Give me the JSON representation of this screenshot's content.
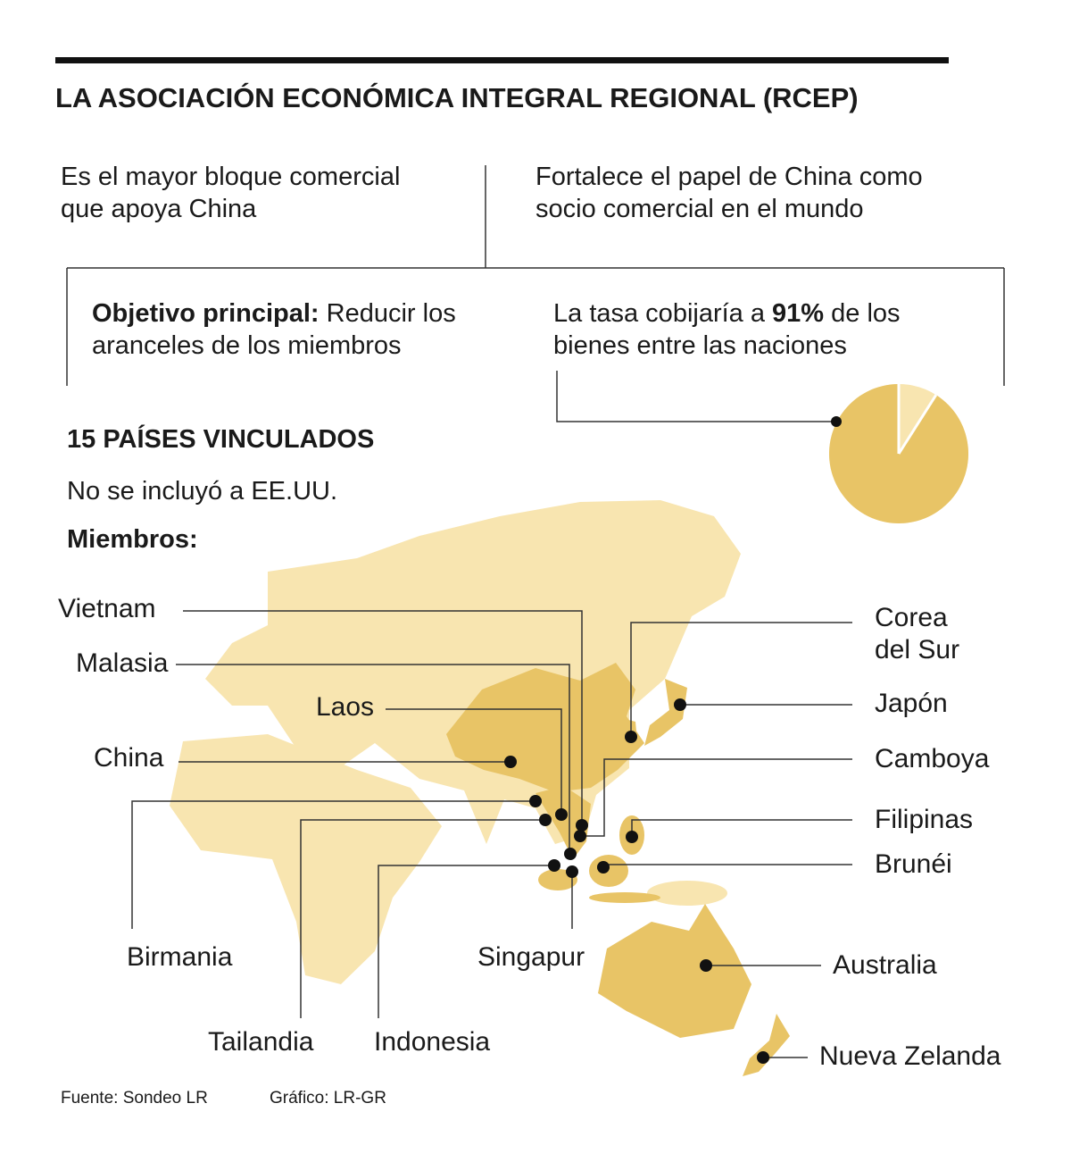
{
  "title": "LA ASOCIACIÓN ECONÓMICA INTEGRAL REGIONAL (RCEP)",
  "facts": [
    "Es el mayor bloque comercial que apoya China",
    "Fortalece el papel de China como socio comercial en el mundo"
  ],
  "objective": {
    "label": "Objetivo principal:",
    "text": "Reducir los aranceles de los miembros"
  },
  "coverage": {
    "before": "La tasa cobijaría a",
    "value": 91,
    "value_label": "91%",
    "after": "de los bienes entre las naciones"
  },
  "map": {
    "title": "15 PAÍSES VINCULADOS",
    "note": "No se incluyó a EE.UU.",
    "members_label": "Miembros:",
    "members": [
      "Vietnam",
      "Malasia",
      "Laos",
      "China",
      "Birmania",
      "Tailandia",
      "Indonesia",
      "Singapur",
      "Corea del Sur",
      "Japón",
      "Camboya",
      "Filipinas",
      "Brunéi",
      "Australia",
      "Nueva Zelanda"
    ]
  },
  "footer": {
    "source": "Fuente: Sondeo LR",
    "graphic": "Gráfico: LR-GR"
  }
}
